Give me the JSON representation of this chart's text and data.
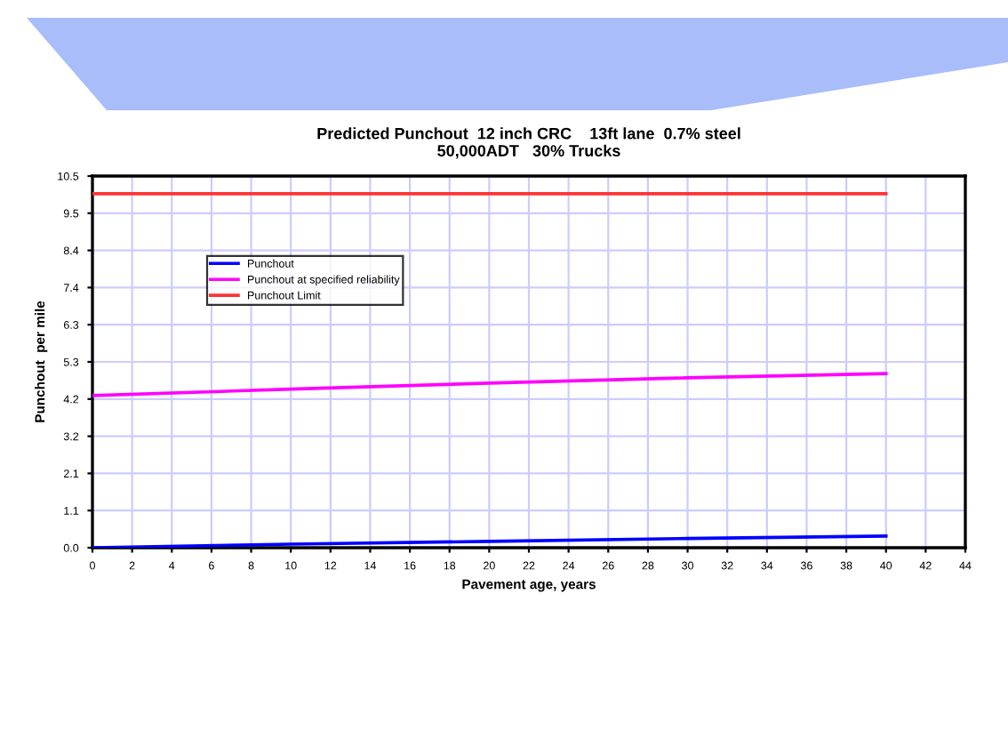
{
  "chart_data": {
    "type": "line",
    "title": "Predicted Punchout  12 inch CRC    13ft lane  0.7% steel\n50,000ADT   30% Trucks",
    "xlabel": "Pavement age, years",
    "ylabel": "Punchout  per mile",
    "x": [
      0,
      10,
      20,
      30,
      40
    ],
    "series": [
      {
        "name": "Punchout",
        "color": "#0000ff",
        "values": [
          0.0,
          0.1,
          0.18,
          0.26,
          0.33
        ]
      },
      {
        "name": "Punchout at specified reliability",
        "color": "#ff00ff",
        "values": [
          4.3,
          4.48,
          4.65,
          4.8,
          4.92
        ]
      },
      {
        "name": "Punchout Limit",
        "color": "#ff3333",
        "values": [
          10.0,
          10.0,
          10.0,
          10.0,
          10.0
        ]
      }
    ],
    "xlim": [
      0,
      44
    ],
    "xticks": [
      0,
      2,
      4,
      6,
      8,
      10,
      12,
      14,
      16,
      18,
      20,
      22,
      24,
      26,
      28,
      30,
      32,
      34,
      36,
      38,
      40,
      42,
      44
    ],
    "ylim": [
      0,
      10.5
    ],
    "yticks": [
      {
        "value": 0,
        "label": "0.0"
      },
      {
        "value": 1.05,
        "label": "1.1"
      },
      {
        "value": 2.1,
        "label": "2.1"
      },
      {
        "value": 3.15,
        "label": "3.2"
      },
      {
        "value": 4.2,
        "label": "4.2"
      },
      {
        "value": 5.25,
        "label": "5.3"
      },
      {
        "value": 6.3,
        "label": "6.3"
      },
      {
        "value": 7.35,
        "label": "7.4"
      },
      {
        "value": 8.4,
        "label": "8.4"
      },
      {
        "value": 9.45,
        "label": "9.5"
      },
      {
        "value": 10.5,
        "label": "10.5"
      }
    ],
    "grid": true,
    "legend": "top left",
    "marker": "none",
    "line_style": "solid"
  }
}
